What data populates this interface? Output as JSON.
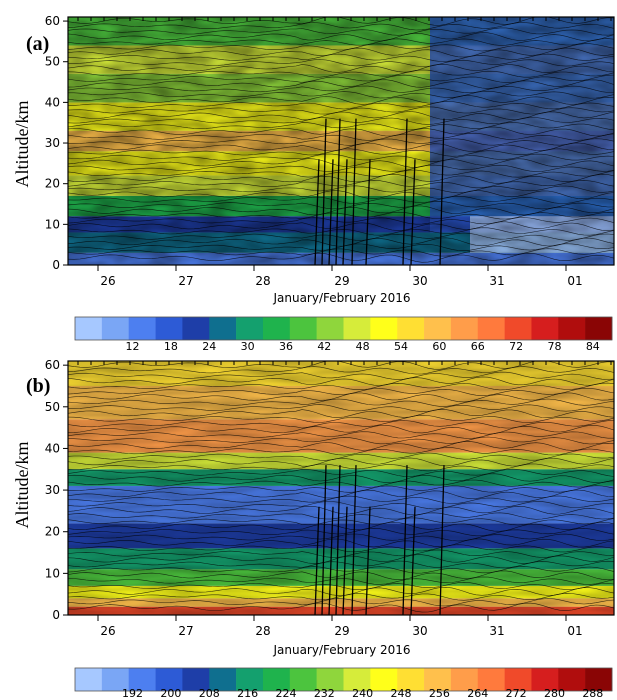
{
  "chart_data": [
    {
      "type": "heatmap",
      "panel": "(a)",
      "title": "",
      "xlabel": "January/February 2016",
      "ylabel": "Altitude/km",
      "x_ticks": [
        "26",
        "27",
        "28",
        "29",
        "30",
        "31",
        "01"
      ],
      "y_ticks": [
        0,
        10,
        20,
        30,
        40,
        50,
        60
      ],
      "ylim": [
        0,
        61
      ],
      "colorbar_ticks": [
        12,
        18,
        24,
        30,
        36,
        42,
        48,
        54,
        60,
        66,
        72,
        78,
        84
      ],
      "colorbar_range": [
        3,
        87
      ],
      "colors": [
        "#a6c8ff",
        "#7aa6f5",
        "#4d7ff0",
        "#2d5bd6",
        "#1e3ea8",
        "#0f6f8f",
        "#14a06e",
        "#1fb34d",
        "#4cc43e",
        "#8fd63c",
        "#d6ec3a",
        "#ffff1a",
        "#ffdf33",
        "#ffc04c",
        "#ff9d4a",
        "#ff7a3d",
        "#f04a2a",
        "#d61e1e",
        "#b00d0d",
        "#8a0505"
      ],
      "bands": [
        {
          "from": 0,
          "to": 3,
          "value": 14
        },
        {
          "from": 3,
          "to": 8,
          "value": 26
        },
        {
          "from": 8,
          "to": 12,
          "value": 20
        },
        {
          "from": 12,
          "to": 17,
          "value": 33
        },
        {
          "from": 17,
          "to": 22,
          "value": 45
        },
        {
          "from": 22,
          "to": 28,
          "value": 52
        },
        {
          "from": 28,
          "to": 33,
          "value": 58
        },
        {
          "from": 33,
          "to": 40,
          "value": 50
        },
        {
          "from": 40,
          "to": 47,
          "value": 43
        },
        {
          "from": 47,
          "to": 54,
          "value": 48
        },
        {
          "from": 54,
          "to": 61,
          "value": 38
        }
      ],
      "late_value": 18
    },
    {
      "type": "heatmap",
      "panel": "(b)",
      "title": "",
      "xlabel": "January/February 2016",
      "ylabel": "Altitude/km",
      "x_ticks": [
        "26",
        "27",
        "28",
        "29",
        "30",
        "31",
        "01"
      ],
      "y_ticks": [
        0,
        10,
        20,
        30,
        40,
        50,
        60
      ],
      "ylim": [
        0,
        61
      ],
      "colorbar_ticks": [
        192,
        200,
        208,
        216,
        224,
        232,
        240,
        248,
        256,
        264,
        272,
        280,
        288
      ],
      "colorbar_range": [
        180,
        292
      ],
      "colors": [
        "#a6c8ff",
        "#7aa6f5",
        "#4d7ff0",
        "#2d5bd6",
        "#1e3ea8",
        "#0f6f8f",
        "#14a06e",
        "#1fb34d",
        "#4cc43e",
        "#8fd63c",
        "#d6ec3a",
        "#ffff1a",
        "#ffdf33",
        "#ffc04c",
        "#ff9d4a",
        "#ff7a3d",
        "#f04a2a",
        "#d61e1e",
        "#b00d0d",
        "#8a0505"
      ],
      "bands": [
        {
          "from": 0,
          "to": 2,
          "value": 272
        },
        {
          "from": 2,
          "to": 4,
          "value": 256
        },
        {
          "from": 4,
          "to": 7,
          "value": 244
        },
        {
          "from": 7,
          "to": 11,
          "value": 228
        },
        {
          "from": 11,
          "to": 16,
          "value": 214
        },
        {
          "from": 16,
          "to": 22,
          "value": 204
        },
        {
          "from": 22,
          "to": 31,
          "value": 196
        },
        {
          "from": 31,
          "to": 35,
          "value": 214
        },
        {
          "from": 35,
          "to": 39,
          "value": 236
        },
        {
          "from": 39,
          "to": 47,
          "value": 262
        },
        {
          "from": 47,
          "to": 55,
          "value": 254
        },
        {
          "from": 55,
          "to": 61,
          "value": 250
        }
      ],
      "late_value": null
    }
  ]
}
